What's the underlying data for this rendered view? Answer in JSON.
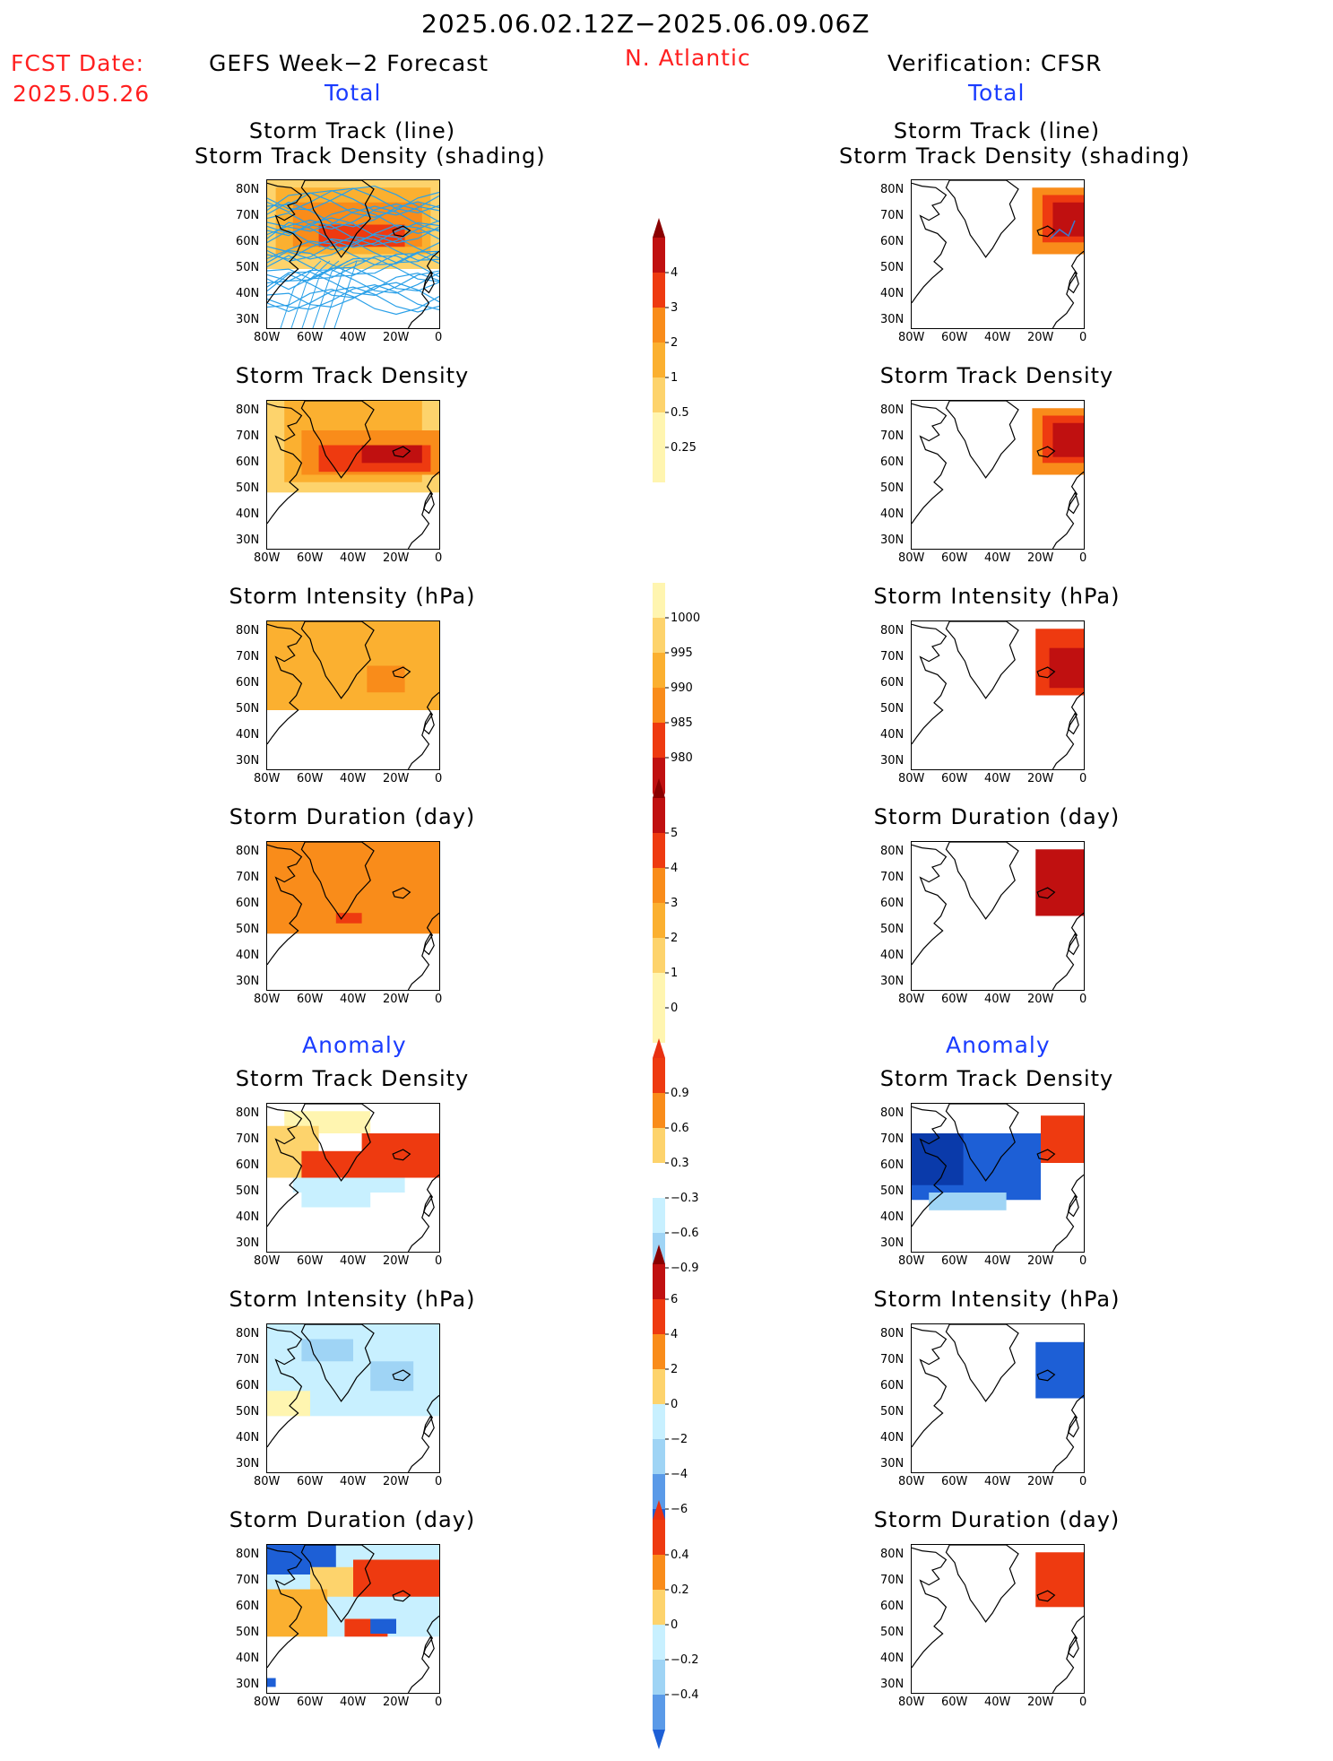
{
  "header": {
    "date_range": "2025.06.02.12Z−2025.06.09.06Z",
    "fcst_label": "FCST Date:",
    "fcst_date": "2025.05.26",
    "forecast_title": "GEFS Week−2 Forecast",
    "region": "N. Atlantic",
    "verification_title": "Verification: CFSR",
    "total_left": "Total",
    "total_right": "Total",
    "anomaly_left": "Anomaly",
    "anomaly_right": "Anomaly"
  },
  "axes": {
    "x_ticks": [
      "80W",
      "60W",
      "40W",
      "20W",
      "0"
    ],
    "y_ticks": [
      "80N",
      "70N",
      "60N",
      "50N",
      "40N",
      "30N"
    ]
  },
  "colors": {
    "pos": [
      "#fff5b0",
      "#fdd36c",
      "#fbb030",
      "#f98c1a",
      "#ee3a10",
      "#c01010",
      "#8a0000"
    ],
    "neg": [
      "#c8f0ff",
      "#9fd4f5",
      "#5a9ae8",
      "#1d5fd6",
      "#0a3aaa"
    ]
  },
  "chart_data": [
    {
      "type": "heatmap",
      "panel": "forecast-total",
      "title_line1": "Storm Track (line)",
      "title_line2": "Storm Track Density (shading)"
    },
    {
      "type": "heatmap",
      "panel": "verification-total",
      "title_line1": "Storm Track (line)",
      "title_line2": "Storm Track Density (shading)"
    },
    {
      "type": "heatmap",
      "panel": "forecast-total",
      "title": "Storm Track Density"
    },
    {
      "type": "heatmap",
      "panel": "verification-total",
      "title": "Storm Track Density"
    },
    {
      "type": "heatmap",
      "panel": "forecast-total",
      "title": "Storm Intensity (hPa)"
    },
    {
      "type": "heatmap",
      "panel": "verification-total",
      "title": "Storm Intensity (hPa)"
    },
    {
      "type": "heatmap",
      "panel": "forecast-total",
      "title": "Storm Duration (day)"
    },
    {
      "type": "heatmap",
      "panel": "verification-total",
      "title": "Storm Duration (day)"
    },
    {
      "type": "heatmap",
      "panel": "forecast-anomaly",
      "title": "Storm Track Density"
    },
    {
      "type": "heatmap",
      "panel": "verification-anomaly",
      "title": "Storm Track Density"
    },
    {
      "type": "heatmap",
      "panel": "forecast-anomaly",
      "title": "Storm Intensity (hPa)"
    },
    {
      "type": "heatmap",
      "panel": "verification-anomaly",
      "title": "Storm Intensity (hPa)"
    },
    {
      "type": "heatmap",
      "panel": "forecast-anomaly",
      "title": "Storm Duration (day)"
    },
    {
      "type": "heatmap",
      "panel": "verification-anomaly",
      "title": "Storm Duration (day)"
    }
  ],
  "colorbars": [
    {
      "name": "track-density-total",
      "labels": [
        "4",
        "3",
        "2",
        "1",
        "0.5",
        "0.25"
      ]
    },
    {
      "name": "intensity-total",
      "labels": [
        "1000",
        "995",
        "990",
        "985",
        "980"
      ]
    },
    {
      "name": "duration-total",
      "labels": [
        "5",
        "4",
        "3",
        "2",
        "1",
        "0"
      ]
    },
    {
      "name": "track-density-anomaly",
      "labels": [
        "0.9",
        "0.6",
        "0.3",
        "−0.3",
        "−0.6",
        "−0.9"
      ]
    },
    {
      "name": "intensity-anomaly",
      "labels": [
        "6",
        "4",
        "2",
        "0",
        "−2",
        "−4",
        "−6"
      ]
    },
    {
      "name": "duration-anomaly",
      "labels": [
        "0.4",
        "0.2",
        "0",
        "−0.2",
        "−0.4"
      ]
    }
  ]
}
